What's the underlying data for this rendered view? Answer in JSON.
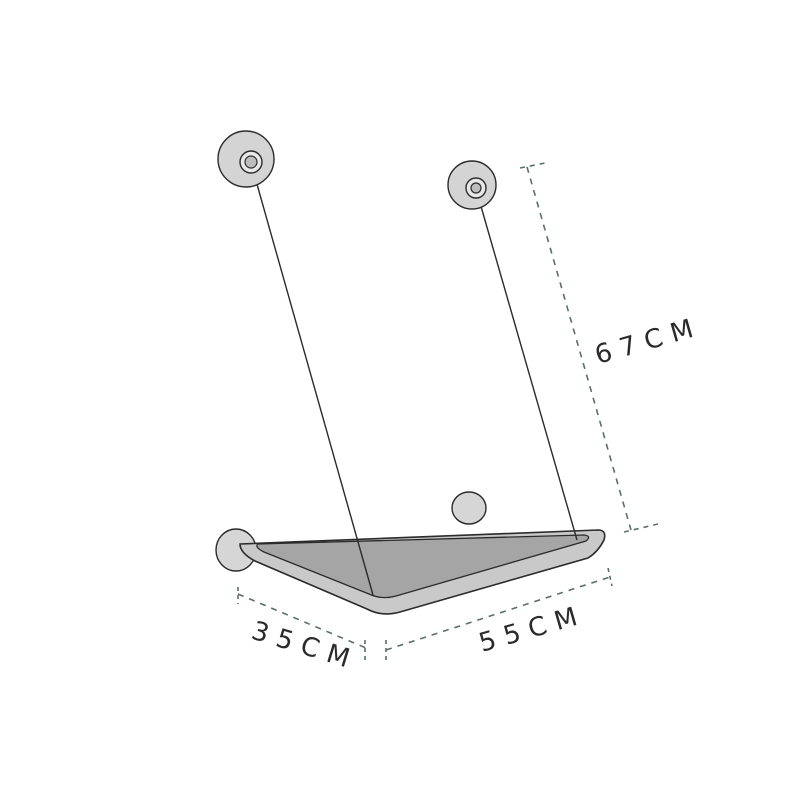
{
  "dimensions": {
    "height_label": "67CM",
    "depth_label": "35CM",
    "width_label": "55CM"
  },
  "colors": {
    "line": "#2b2b2b",
    "cushion": "#a4a4a4",
    "frame": "#c8c8c8",
    "suction_cup": "#d4d4d4",
    "dimension_line": "#5a6e6a"
  }
}
